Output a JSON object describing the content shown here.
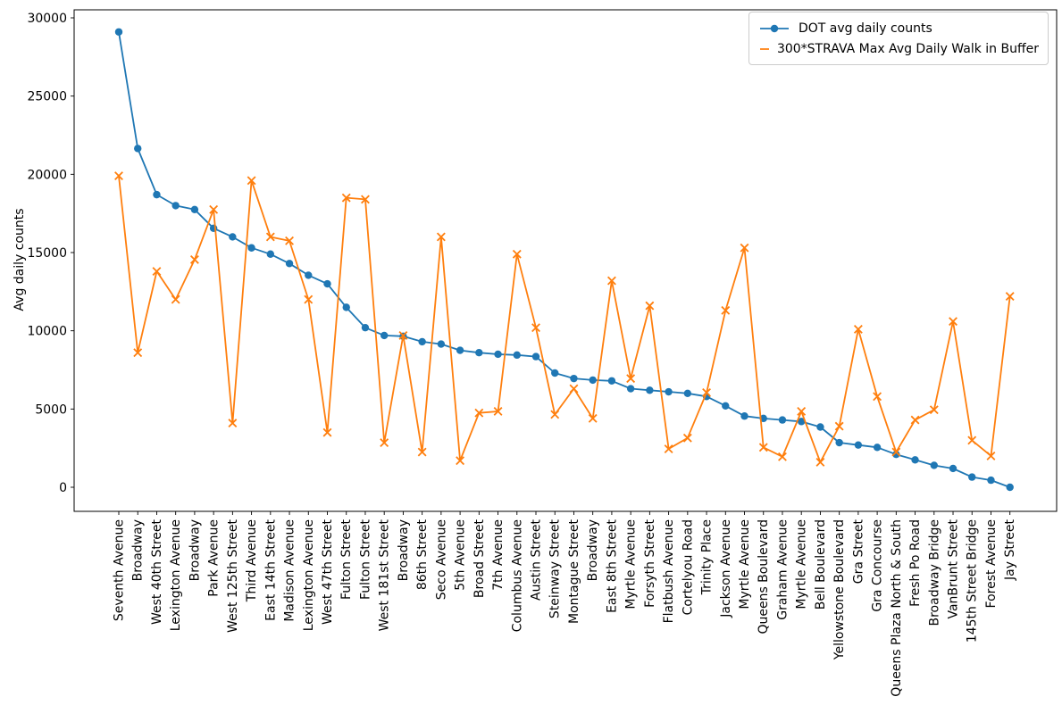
{
  "figure": {
    "background": "#ffffff"
  },
  "chart_data": {
    "type": "line",
    "title": "",
    "xlabel": "",
    "ylabel": "Avg daily counts",
    "ylim": [
      0,
      30000
    ],
    "yticks": [
      0,
      5000,
      10000,
      15000,
      20000,
      25000,
      30000
    ],
    "grid": false,
    "legend_position": "upper right",
    "categories": [
      "Seventh Avenue",
      "Broadway",
      "West 40th Street",
      "Lexington Avenue",
      "Broadway",
      "Park Avenue",
      "West 125th Street",
      "Third Avenue",
      "East 14th Street",
      "Madison Avenue",
      "Lexington Avenue",
      "West 47th Street",
      "Fulton Street",
      "Fulton Street",
      "West 181st Street",
      "Broadway",
      "86th Street",
      "Seco Avenue",
      "5th Avenue",
      "Broad Street",
      "7th Avenue",
      "Columbus Avenue",
      "Austin Street",
      "Steinway Street",
      "Montague Street",
      "Broadway",
      "East 8th Street",
      "Myrtle Avenue",
      "Forsyth Street",
      "Flatbush Avenue",
      "Cortelyou Road",
      "Trinity Place",
      "Jackson Avenue",
      "Myrtle Avenue",
      "Queens Boulevard",
      "Graham Avenue",
      "Myrtle Avenue",
      "Bell Boulevard",
      "Yellowstone Boulevard",
      "Gra Street",
      "Gra Concourse",
      "Queens Plaza North & South",
      "Fresh Po Road",
      "Broadway Bridge",
      "VanBrunt Street",
      "145th Street Bridge",
      "Forest Avenue",
      "Jay Street"
    ],
    "series": [
      {
        "name": "DOT avg daily counts",
        "color": "#1f77b4",
        "marker": "circle",
        "values": [
          29100,
          21650,
          18700,
          18000,
          17750,
          16550,
          16000,
          15300,
          14900,
          14300,
          13550,
          13000,
          11500,
          10200,
          9700,
          9650,
          9300,
          9150,
          8750,
          8600,
          8500,
          8450,
          8350,
          7300,
          6950,
          6850,
          6800,
          6300,
          6200,
          6100,
          6000,
          5800,
          5200,
          4550,
          4400,
          4300,
          4200,
          3850,
          2850,
          2700,
          2550,
          2100,
          1750,
          1400,
          1200,
          650,
          450,
          0
        ]
      },
      {
        "name": "300*STRAVA Max Avg Daily Walk in Buffer",
        "color": "#ff7f0e",
        "marker": "x",
        "values": [
          19900,
          8600,
          13800,
          12000,
          14550,
          17750,
          4100,
          19600,
          16000,
          15750,
          12000,
          3500,
          18500,
          18400,
          2850,
          9700,
          2250,
          16000,
          1700,
          4750,
          4850,
          14900,
          10200,
          4650,
          6300,
          4400,
          13200,
          6950,
          11600,
          2450,
          3150,
          6050,
          11300,
          15300,
          2550,
          1950,
          4850,
          1600,
          3900,
          10100,
          5800,
          2250,
          4300,
          4950,
          10600,
          3000,
          2000,
          12200
        ]
      }
    ]
  }
}
